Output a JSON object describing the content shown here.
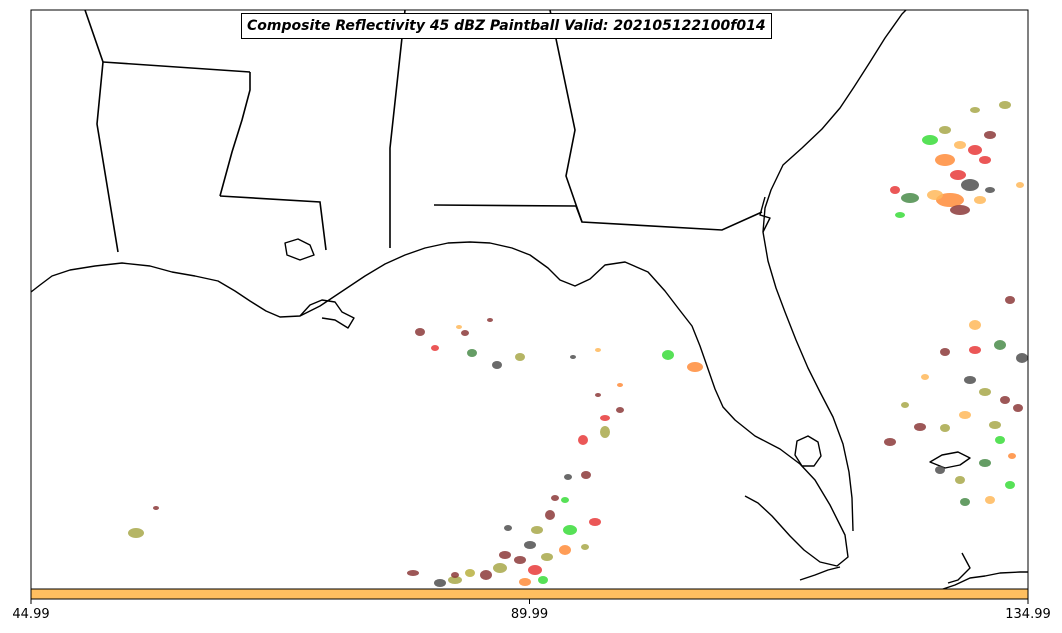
{
  "map": {
    "title": "Composite Reflectivity 45 dBZ Paintball Valid: 202105122100f014",
    "colors": {
      "land_line": "#000000",
      "background": "#ffffff",
      "colorbar": "#ffbf60",
      "cell_palette": [
        "#e83a3a",
        "#ff8c3a",
        "#ffb85a",
        "#a8a84a",
        "#4a8c4a",
        "#3adc3a",
        "#8c3a3a",
        "#505050",
        "#b8b040"
      ]
    }
  },
  "colorbar": {
    "ticks": [
      "44.99",
      "89.99",
      "134.99"
    ]
  }
}
